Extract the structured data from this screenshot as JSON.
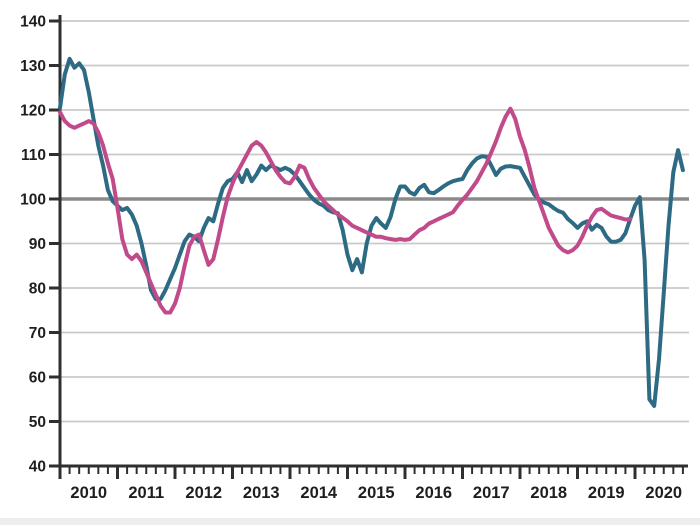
{
  "chart": {
    "title": "",
    "legend": "none",
    "y_axis": {
      "min": 40,
      "max": 140,
      "step": 10,
      "labels": [
        "140",
        "130",
        "120",
        "110",
        "100",
        "90",
        "80",
        "70",
        "60",
        "50",
        "40"
      ]
    },
    "x_axis": {
      "labels": [
        "2010",
        "2011",
        "2012",
        "2013",
        "2014",
        "2015",
        "2016",
        "2017",
        "2018",
        "2019",
        "2020"
      ],
      "minor_divisions_per_year": 6
    },
    "reference_line_value": 100,
    "colors": {
      "teal_series": "#2d6a84",
      "pink_series": "#c14a8a",
      "grid": "#cacaca",
      "reference_line": "#8a8a8a",
      "axis": "#2f2f2f",
      "labels": "#1e1e1e"
    }
  },
  "chart_data": {
    "type": "line",
    "x_unit": "month",
    "start_year": 2010,
    "ylim": [
      40,
      140
    ],
    "grid": "horizontal-only",
    "legend_position": "none",
    "reference_line": 100,
    "series": [
      {
        "name": "teal-line",
        "color": "#2d6a84",
        "start": "2010-01",
        "values": [
          120.5,
          128,
          131.5,
          129.5,
          130.5,
          129,
          124,
          118,
          112,
          107.5,
          102,
          99.5,
          98.5,
          97.5,
          98,
          96.5,
          94,
          90,
          85,
          79.5,
          77.5,
          77.5,
          79.5,
          82,
          84.5,
          87.5,
          90.5,
          92,
          91.5,
          90.5,
          93.5,
          95.7,
          95,
          99,
          102.5,
          104,
          104.5,
          106,
          103.8,
          106.5,
          104,
          105.5,
          107.5,
          106.5,
          107.5,
          107,
          106.5,
          107,
          106.5,
          105.5,
          104,
          102.5,
          101,
          99.8,
          99,
          98.5,
          97.5,
          97,
          96.8,
          93,
          87.5,
          84,
          86.5,
          83.5,
          90,
          94,
          95.7,
          94.5,
          93.5,
          96,
          100,
          102.8,
          102.8,
          101.5,
          101,
          102.5,
          103.2,
          101.5,
          101.3,
          102,
          102.8,
          103.5,
          104,
          104.3,
          104.5,
          106.5,
          108,
          109.1,
          109.6,
          109.5,
          107.5,
          105.4,
          106.8,
          107.3,
          107.4,
          107.2,
          107,
          105,
          103,
          101,
          99.9,
          99.2,
          98.8,
          98,
          97.3,
          96.9,
          95.5,
          94.6,
          93.5,
          94.5,
          95,
          93.1,
          94.2,
          93.5,
          91.6,
          90.4,
          90.4,
          90.8,
          92.3,
          95.5,
          98.5,
          100.4,
          86.3,
          55,
          53.5,
          64,
          79,
          94,
          106,
          111,
          106.5
        ]
      },
      {
        "name": "pink-line",
        "color": "#c14a8a",
        "start": "2010-01",
        "values": [
          119.5,
          117.5,
          116.5,
          116,
          116.5,
          117,
          117.5,
          117,
          115,
          112,
          108,
          104.5,
          98,
          91,
          87.5,
          86.5,
          87.5,
          86,
          83.5,
          81,
          78.5,
          76,
          74.5,
          74.5,
          76.5,
          80,
          85,
          89.5,
          91.5,
          92,
          88.5,
          85.2,
          86.5,
          91,
          96,
          100.5,
          103.5,
          106,
          108,
          110,
          112,
          112.8,
          112,
          110.5,
          108.5,
          106.5,
          105,
          103.8,
          103.5,
          105,
          107.5,
          107,
          104.5,
          102.5,
          101,
          99.5,
          98.5,
          97.5,
          96.5,
          95.8,
          95,
          94,
          93.5,
          93,
          92.5,
          92,
          91.5,
          91.5,
          91.2,
          91,
          90.8,
          91,
          90.8,
          91,
          92,
          93,
          93.5,
          94.5,
          95,
          95.5,
          96,
          96.5,
          97,
          98.5,
          99.8,
          101,
          102.5,
          104,
          106,
          108,
          110.5,
          113,
          116,
          118.5,
          120.3,
          118,
          114,
          111,
          107,
          102.5,
          99.5,
          96.5,
          93.5,
          91.5,
          89.5,
          88.5,
          88,
          88.5,
          89.5,
          91.5,
          94,
          96,
          97.5,
          97.8,
          97,
          96.3,
          96,
          95.7,
          95.4,
          95.5
        ]
      }
    ]
  }
}
